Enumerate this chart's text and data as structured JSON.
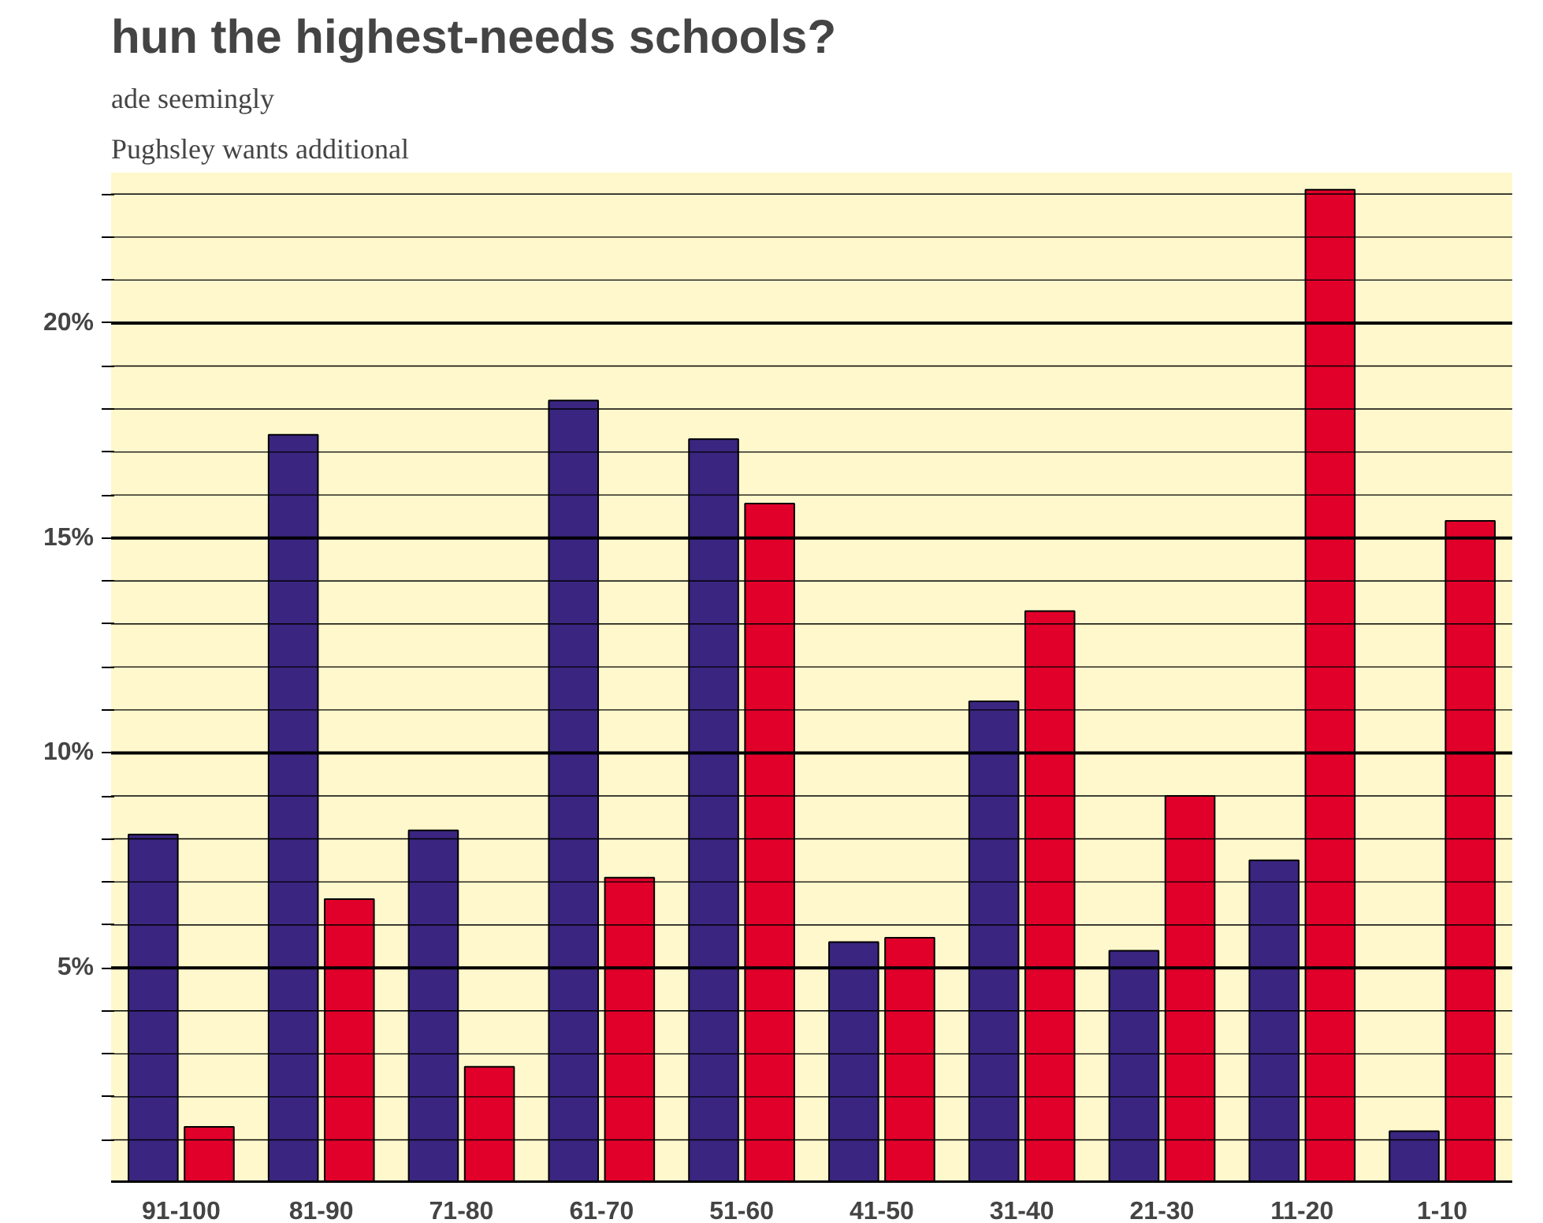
{
  "chart_data": {
    "type": "bar",
    "title": "hun the highest-needs schools?",
    "annotations": [
      "ade seemingly",
      "Pughsley wants additional"
    ],
    "categories": [
      "91-100",
      "81-90",
      "71-80",
      "61-70",
      "51-60",
      "41-50",
      "31-40",
      "21-30",
      "11-20",
      "1-10"
    ],
    "series": [
      {
        "color": "#3a2580",
        "values": [
          8.1,
          17.4,
          8.2,
          18.2,
          17.3,
          5.6,
          11.2,
          5.4,
          7.5,
          1.2
        ]
      },
      {
        "color": "#e0002a",
        "values": [
          1.3,
          6.6,
          2.7,
          7.1,
          15.8,
          5.7,
          13.3,
          9.0,
          23.1,
          15.4
        ]
      }
    ],
    "ylim": [
      0,
      23.5
    ],
    "yticks": [
      {
        "value": 1,
        "label": null
      },
      {
        "value": 2,
        "label": null
      },
      {
        "value": 3,
        "label": null
      },
      {
        "value": 4,
        "label": null
      },
      {
        "value": 5,
        "label": "5%"
      },
      {
        "value": 6,
        "label": null
      },
      {
        "value": 7,
        "label": null
      },
      {
        "value": 8,
        "label": null
      },
      {
        "value": 9,
        "label": null
      },
      {
        "value": 10,
        "label": "10%"
      },
      {
        "value": 11,
        "label": null
      },
      {
        "value": 12,
        "label": null
      },
      {
        "value": 13,
        "label": null
      },
      {
        "value": 14,
        "label": null
      },
      {
        "value": 15,
        "label": "15%"
      },
      {
        "value": 16,
        "label": null
      },
      {
        "value": 17,
        "label": null
      },
      {
        "value": 18,
        "label": null
      },
      {
        "value": 19,
        "label": null
      },
      {
        "value": 20,
        "label": "20%"
      },
      {
        "value": 21,
        "label": null
      },
      {
        "value": 22,
        "label": null
      },
      {
        "value": 23,
        "label": null
      }
    ],
    "grid": "y"
  }
}
